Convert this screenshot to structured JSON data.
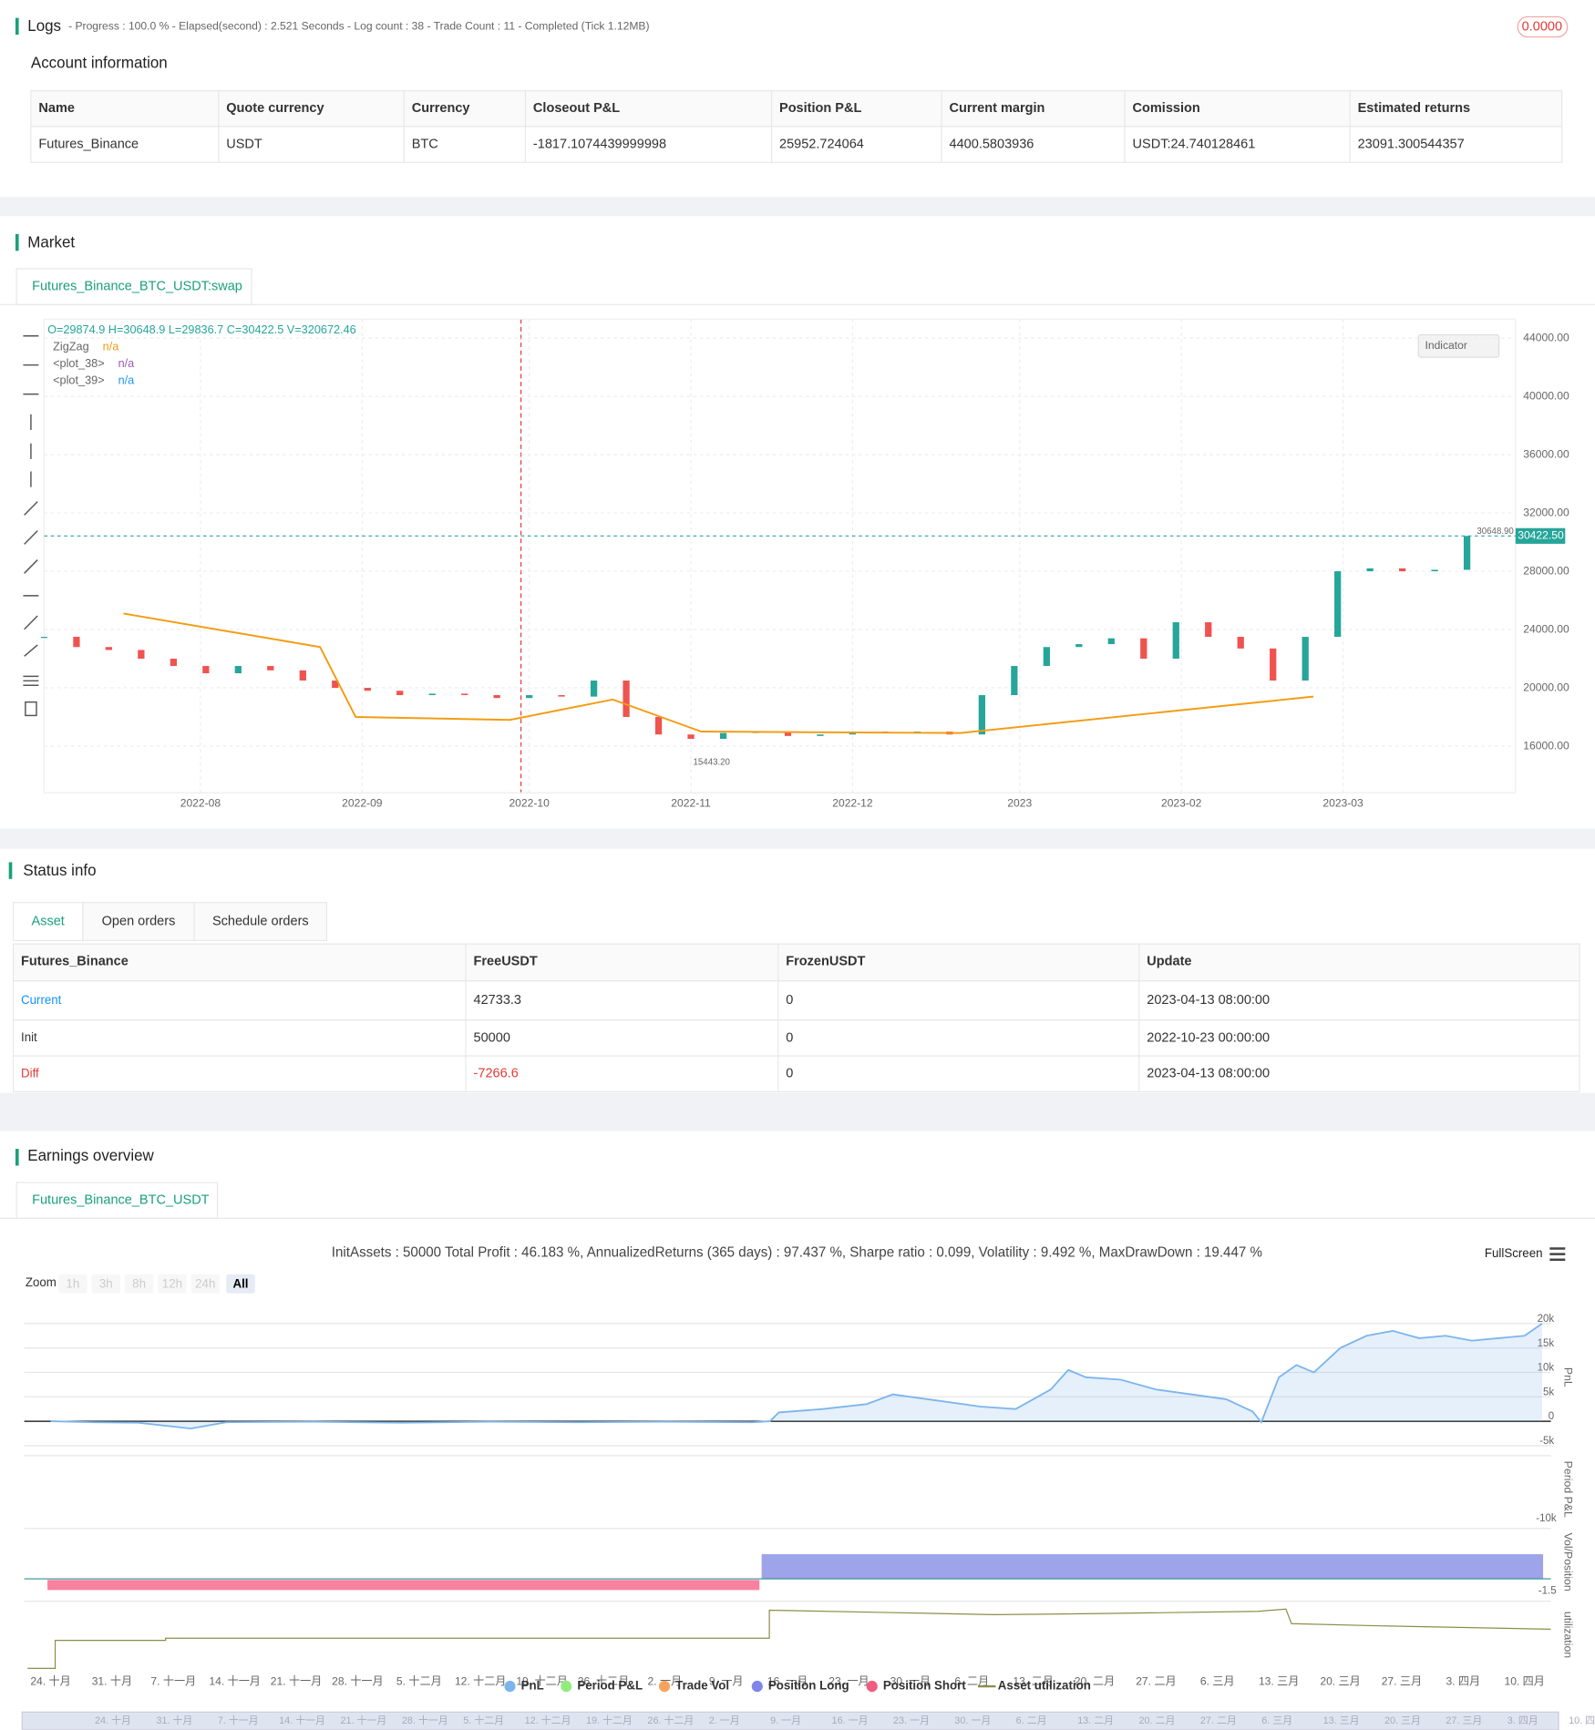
{
  "logs": {
    "title": "Logs",
    "progress": "- Progress : 100.0 % - Elapsed(second) : 2.521  Seconds - Log count : 38 - Trade Count : 11 - Completed (Tick 1.12MB)",
    "badge": "0.0000"
  },
  "account": {
    "title": "Account information",
    "header": [
      "Name",
      "Quote currency",
      "Currency",
      "Closeout P&L",
      "Position P&L",
      "Current margin",
      "Comission",
      "Estimated returns"
    ],
    "rows": [
      [
        "Futures_Binance",
        "USDT",
        "BTC",
        "-1817.1074439999998",
        "25952.724064",
        "4400.5803936",
        "USDT:24.740128461",
        "23091.300544357"
      ]
    ]
  },
  "market": {
    "title": "Market",
    "tab": "Futures_Binance_BTC_USDT:swap",
    "indicator": "Indicator",
    "chart_data": {
      "type": "candlestick",
      "ohlc": "O=29874.9 H=30648.9 L=29836.7 C=30422.5 V=320672.46",
      "x": [
        0,
        6,
        12,
        18,
        24,
        30,
        36,
        42,
        48,
        54,
        60,
        66,
        72,
        78,
        84,
        90,
        96,
        102,
        108,
        114,
        120,
        126,
        132,
        138,
        144,
        150,
        156,
        162,
        168,
        174,
        180,
        186,
        192,
        198,
        204,
        210,
        216,
        222,
        228,
        234,
        240,
        246,
        252,
        258,
        264
      ],
      "values": [
        23500,
        22800,
        22600,
        22000,
        21500,
        21000,
        21500,
        21200,
        20500,
        20000,
        19800,
        19500,
        19600,
        19500,
        19300,
        19500,
        19400,
        20500,
        18000,
        16800,
        16500,
        16900,
        17000,
        16700,
        16800,
        17000,
        16900,
        17000,
        16800,
        19500,
        21500,
        22800,
        23000,
        23400,
        22000,
        24500,
        23500,
        22700,
        20500,
        23500,
        28000,
        28200,
        28000,
        28100,
        30422.5
      ],
      "up_color": "#26a69a",
      "down_color": "#ef5350",
      "xlim": [
        0,
        273
      ],
      "ylim": [
        12800,
        45300
      ],
      "xticks": [
        {
          "value": 29,
          "label": "2022-08"
        },
        {
          "value": 59,
          "label": "2022-09"
        },
        {
          "value": 90,
          "label": "2022-10"
        },
        {
          "value": 120,
          "label": "2022-11"
        },
        {
          "value": 150,
          "label": "2022-12"
        },
        {
          "value": 181,
          "label": "2023"
        },
        {
          "value": 211,
          "label": "2023-02"
        },
        {
          "value": 241,
          "label": "2023-03"
        }
      ],
      "yticks": [
        {
          "value": 44000,
          "label": "44000.00"
        },
        {
          "value": 40000,
          "label": "40000.00"
        },
        {
          "value": 36000,
          "label": "36000.00"
        },
        {
          "value": 32000,
          "label": "32000.00"
        },
        {
          "value": 28000,
          "label": "28000.00"
        },
        {
          "value": 24000,
          "label": "24000.00"
        },
        {
          "value": 20000,
          "label": "20000.00"
        },
        {
          "value": 16000,
          "label": "16000.00"
        }
      ],
      "last_price": {
        "value": 30422.5,
        "label": "30422.50"
      },
      "high_label": {
        "value": 30648.9,
        "label": "30648.90"
      },
      "low_label": {
        "value": 15443.2,
        "label": "15443.20"
      },
      "series": [
        {
          "name": "ZigZag",
          "value_text": "n/a",
          "color": "#f39c12",
          "x": [
            14.7,
            51.2,
            57.8,
            86.4,
            105.5,
            121.9,
            170,
            235.5
          ],
          "values": [
            25100,
            22800,
            18000,
            17800,
            19200,
            17000,
            16900,
            19400
          ]
        },
        {
          "name": "<plot_38>",
          "value_text": "n/a",
          "color": "#9b59b6"
        },
        {
          "name": "<plot_39>",
          "value_text": "n/a",
          "color": "#2196f3"
        }
      ]
    }
  },
  "status": {
    "title": "Status info",
    "tabs": [
      "Asset",
      "Open orders",
      "Schedule orders"
    ],
    "header": [
      "Futures_Binance",
      "FreeUSDT",
      "FrozenUSDT",
      "Update"
    ],
    "rows": [
      [
        "Current",
        "42733.3",
        "0",
        "2023-04-13 08:00:00"
      ],
      [
        "Init",
        "50000",
        "0",
        "2022-10-23 00:00:00"
      ],
      [
        "Diff",
        "-7266.6",
        "0",
        "2023-04-13 08:00:00"
      ]
    ]
  },
  "earnings": {
    "title": "Earnings overview",
    "tab": "Futures_Binance_BTC_USDT",
    "summary": "InitAssets : 50000 Total Profit : 46.183 %, AnnualizedReturns (365 days) : 97.437 %, Sharpe ratio : 0.099, Volatility : 9.492 %, MaxDrawDown : 19.447 %",
    "fullscreen": "FullScreen",
    "zoom": "Zoom",
    "zoom_buttons": [
      "1h",
      "3h",
      "8h",
      "12h",
      "24h",
      "All"
    ],
    "chart_data": {
      "type": "line",
      "title": "PnL",
      "color": "#7cb5ec",
      "x": [
        0,
        5,
        10,
        16,
        20,
        30,
        40,
        50,
        60,
        70,
        80,
        82,
        83,
        88,
        93,
        96,
        100,
        106,
        110,
        114,
        116,
        118,
        122,
        126,
        130,
        134,
        137,
        138,
        140,
        142,
        144,
        147,
        150,
        153,
        156,
        159,
        162,
        165,
        168,
        170
      ],
      "values": [
        0,
        -200,
        -300,
        -1500,
        -200,
        -100,
        -300,
        -100,
        -200,
        -100,
        -200,
        0,
        1800,
        2500,
        3500,
        5500,
        4500,
        3000,
        2500,
        6500,
        10500,
        9000,
        8500,
        6500,
        5500,
        4500,
        2000,
        -200,
        9000,
        11500,
        10000,
        15000,
        17500,
        18500,
        17000,
        17500,
        16500,
        17000,
        17500,
        20000
      ],
      "xlim": [
        -3,
        171
      ],
      "ylim": [
        -5900,
        23900
      ],
      "yticks": [
        {
          "value": 20000,
          "label": "20k"
        },
        {
          "value": 15000,
          "label": "15k"
        },
        {
          "value": 10000,
          "label": "10k"
        },
        {
          "value": 5000,
          "label": "5k"
        },
        0,
        {
          "value": -5000,
          "label": "-5k"
        }
      ],
      "xticks": [
        {
          "value": 0,
          "label": "24. 十月"
        },
        {
          "value": 7,
          "label": "31. 十月"
        },
        {
          "value": 14,
          "label": "7. 十一月"
        },
        {
          "value": 21,
          "label": "14. 十一月"
        },
        {
          "value": 28,
          "label": "21. 十一月"
        },
        {
          "value": 35,
          "label": "28. 十一月"
        },
        {
          "value": 42,
          "label": "5. 十二月"
        },
        {
          "value": 49,
          "label": "12. 十二月"
        },
        {
          "value": 56,
          "label": "19. 十二月"
        },
        {
          "value": 63,
          "label": "26. 十二月"
        },
        {
          "value": 70,
          "label": "2. 一月"
        },
        {
          "value": 77,
          "label": "9. 一月"
        },
        {
          "value": 84,
          "label": "16. 一月"
        },
        {
          "value": 91,
          "label": "23. 一月"
        },
        {
          "value": 98,
          "label": "30. 一月"
        },
        {
          "value": 105,
          "label": "6. 二月"
        },
        {
          "value": 112,
          "label": "13. 二月"
        },
        {
          "value": 119,
          "label": "20. 二月"
        },
        {
          "value": 126,
          "label": "27. 二月"
        },
        {
          "value": 133,
          "label": "6. 三月"
        },
        {
          "value": 140,
          "label": "13. 三月"
        },
        {
          "value": 147,
          "label": "20. 三月"
        },
        {
          "value": 154,
          "label": "27. 三月"
        },
        {
          "value": 161,
          "label": "3. 四月"
        },
        {
          "value": 168,
          "label": "10. 四月"
        }
      ]
    },
    "panels": [
      {
        "title": "Period P&L",
        "tick": {
          "value": -10000,
          "label": "-10k"
        }
      },
      {
        "title": "Vol/Position",
        "tick": {
          "value": -1.5,
          "label": "-1.5"
        }
      },
      {
        "title": "utilization"
      }
    ],
    "legend": [
      {
        "name": "PnL",
        "color": "#7cb5ec"
      },
      {
        "name": "Period P&L",
        "color": "#90ed7d"
      },
      {
        "name": "Trade Vol",
        "color": "#f7a35c"
      },
      {
        "name": "Position Long",
        "color": "#8085e9"
      },
      {
        "name": "Position Short",
        "color": "#f15c80"
      },
      {
        "name": "Asset utilization",
        "color": "#8d8d4a"
      }
    ]
  }
}
